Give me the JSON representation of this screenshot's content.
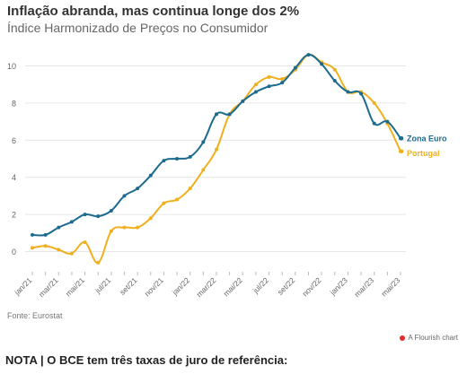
{
  "title": "Inflação abranda, mas continua longe dos 2%",
  "subtitle": "Índice Harmonizado de Preços no Consumidor",
  "source": "Fonte: Eurostat",
  "credit": "A Flourish chart",
  "note": "NOTA | O BCE tem três taxas de juro de referência:",
  "colors": {
    "zona_euro": "#1c6b8f",
    "portugal": "#f0b01e",
    "grid": "#e6e6e6",
    "axis_text": "#666666"
  },
  "chart_data": {
    "type": "line",
    "title": "Inflação abranda, mas continua longe dos 2%",
    "subtitle": "Índice Harmonizado de Preços no Consumidor",
    "ylim": [
      -1,
      11
    ],
    "yticks": [
      0,
      2,
      4,
      6,
      8,
      10
    ],
    "grid": true,
    "legend": "end-of-line labels",
    "x": [
      "jan/21",
      "fev/21",
      "mar/21",
      "abr/21",
      "mai/21",
      "jun/21",
      "jul/21",
      "ago/21",
      "set/21",
      "out/21",
      "nov/21",
      "dez/21",
      "jan/22",
      "fev/22",
      "mar/22",
      "abr/22",
      "mai/22",
      "jun/22",
      "jul/22",
      "ago/22",
      "set/22",
      "out/22",
      "nov/22",
      "dez/22",
      "jan/23",
      "fev/23",
      "mar/23",
      "abr/23",
      "mai/23"
    ],
    "xtick_labels": [
      "jan/21",
      "mar/21",
      "mai/21",
      "jul/21",
      "set/21",
      "nov/21",
      "jan/22",
      "mar/22",
      "mai/22",
      "jul/22",
      "set/22",
      "nov/22",
      "jan/23",
      "mar/23",
      "mai/23"
    ],
    "series": [
      {
        "name": "Zona Euro",
        "color": "#1c6b8f",
        "values": [
          0.9,
          0.9,
          1.3,
          1.6,
          2.0,
          1.9,
          2.2,
          3.0,
          3.4,
          4.1,
          4.9,
          5.0,
          5.1,
          5.9,
          7.4,
          7.4,
          8.1,
          8.6,
          8.9,
          9.1,
          9.9,
          10.6,
          10.1,
          9.2,
          8.6,
          8.5,
          6.9,
          7.0,
          6.1
        ]
      },
      {
        "name": "Portugal",
        "color": "#f0b01e",
        "values": [
          0.2,
          0.3,
          0.1,
          -0.1,
          0.5,
          -0.6,
          1.1,
          1.3,
          1.3,
          1.8,
          2.6,
          2.8,
          3.4,
          4.4,
          5.5,
          7.4,
          8.1,
          9.0,
          9.4,
          9.3,
          9.8,
          10.6,
          10.2,
          9.8,
          8.6,
          8.6,
          8.0,
          6.9,
          5.4
        ]
      }
    ]
  }
}
